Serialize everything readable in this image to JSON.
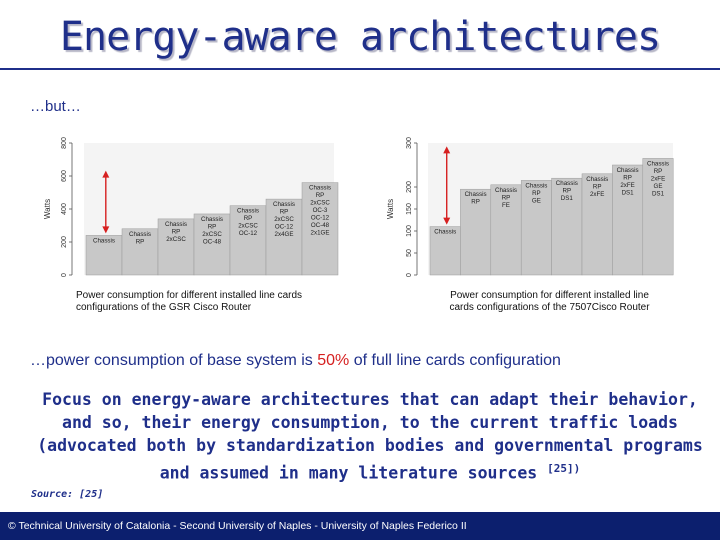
{
  "slide": {
    "title": "Energy-aware architectures",
    "but_text": "…but…",
    "power_text_before": "…power consumption of base system is ",
    "power_text_pct": "50%",
    "power_text_after": " of full line cards configuration",
    "focus_text": "Focus on energy-aware architectures that can adapt their behavior, and so, their energy consumption, to the current traffic loads (advocated both by standardization bodies and governmental programs and assumed in many literature sources ",
    "focus_ref": "[25])",
    "source": "Source: [25]",
    "footer": "© Technical University of Catalonia - Second University of Naples - University of Naples Federico II"
  },
  "colors": {
    "title": "#1f2f8a",
    "accent_red": "#d62020",
    "footer_bg": "#0c1f6e",
    "bar_fill": "#c8c8c8"
  },
  "chart_data": [
    {
      "type": "bar",
      "caption": "Power consumption for different installed line cards configurations of the GSR Cisco Router",
      "ylabel": "Watts",
      "ylim": [
        0,
        800
      ],
      "yticks": [
        "0",
        "200",
        "400",
        "600",
        "800"
      ],
      "categories": [
        [
          "Chassis"
        ],
        [
          "Chassis",
          "RP"
        ],
        [
          "Chassis",
          "RP",
          "2xCSC"
        ],
        [
          "Chassis",
          "RP",
          "2xCSC",
          "OC-48"
        ],
        [
          "Chassis",
          "RP",
          "2xCSC",
          "OC-12"
        ],
        [
          "Chassis",
          "RP",
          "2xCSC",
          "OC-12",
          "2x4GE"
        ],
        [
          "Chassis",
          "RP",
          "2xCSC",
          "OC-3",
          "OC-12",
          "OC-48",
          "2x1GE"
        ]
      ],
      "values": [
        240,
        280,
        340,
        370,
        420,
        460,
        560
      ],
      "arrow": true
    },
    {
      "type": "bar",
      "caption": "Power consumption for different installed line cards configurations of the 7507Cisco Router",
      "ylabel": "Watts",
      "ylim": [
        0,
        300
      ],
      "yticks": [
        "0",
        "50",
        "100",
        "150",
        "200",
        "300"
      ],
      "categories": [
        [
          "Chassis"
        ],
        [
          "Chassis",
          "RP"
        ],
        [
          "Chassis",
          "RP",
          "FE"
        ],
        [
          "Chassis",
          "RP",
          "GE"
        ],
        [
          "Chassis",
          "RP",
          "DS1"
        ],
        [
          "Chassis",
          "RP",
          "2xFE"
        ],
        [
          "Chassis",
          "RP",
          "2xFE",
          "DS1"
        ],
        [
          "Chassis",
          "RP",
          "2xFE",
          "GE",
          "DS1"
        ]
      ],
      "values": [
        110,
        195,
        205,
        215,
        220,
        230,
        250,
        265
      ],
      "arrow": true
    }
  ]
}
